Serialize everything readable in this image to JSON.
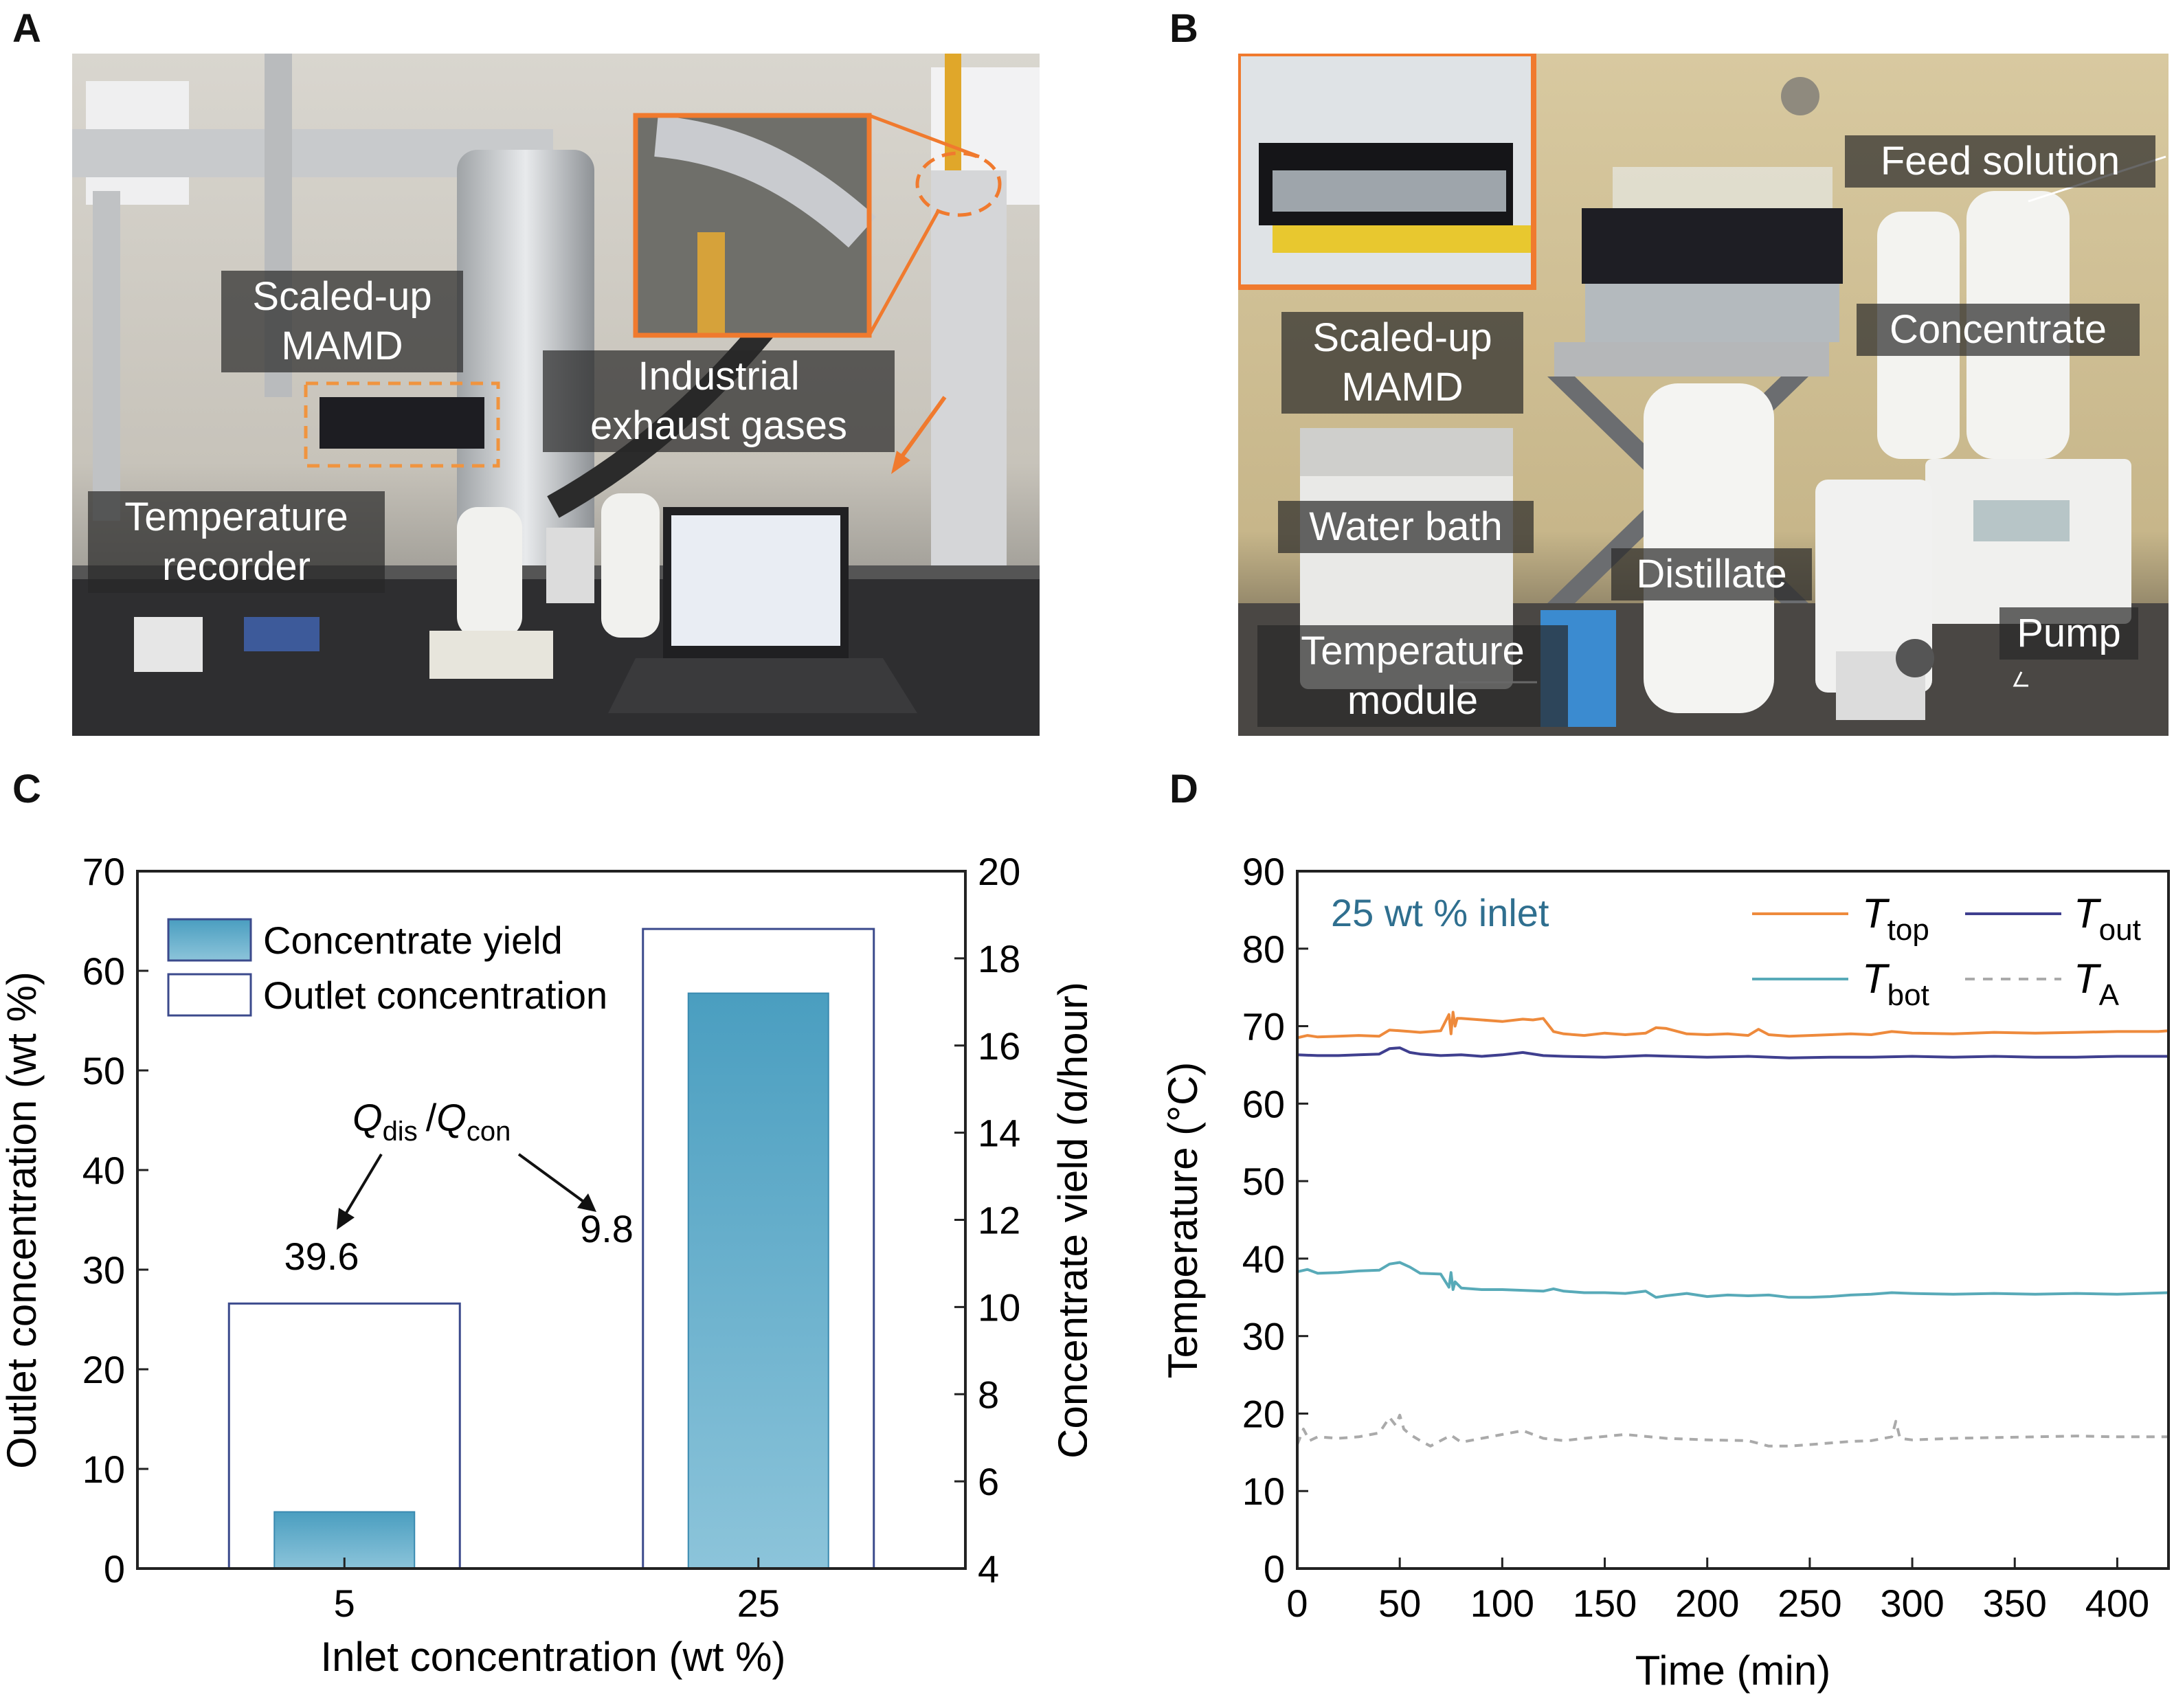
{
  "panels": {
    "a": "A",
    "b": "B",
    "c": "C",
    "d": "D"
  },
  "photo_a": {
    "labels": {
      "scaled_up_line1": "Scaled-up",
      "scaled_up_line2": "MAMD",
      "industrial_line1": "Industrial",
      "industrial_line2": "exhaust gases",
      "temp_recorder_line1": "Temperature",
      "temp_recorder_line2": "recorder"
    }
  },
  "photo_b": {
    "labels": {
      "feed": "Feed solution",
      "concentrate": "Concentrate",
      "scaled_up_line1": "Scaled-up",
      "scaled_up_line2": "MAMD",
      "water_bath": "Water bath",
      "distillate": "Distillate",
      "pump": "Pump",
      "temp_module_line1": "Temperature",
      "temp_module_line2": "module"
    }
  },
  "chart_c": {
    "type": "bar",
    "xlabel": "Inlet concentration (wt %)",
    "ylabel_left": "Outlet concentration (wt %)",
    "ylabel_right": "Concentrate yield (g/hour)",
    "categories": [
      "5",
      "25"
    ],
    "ylim_left": [
      0,
      70
    ],
    "yticks_left": [
      "0",
      "10",
      "20",
      "30",
      "40",
      "50",
      "60",
      "70"
    ],
    "ylim_right": [
      4,
      20
    ],
    "yticks_right": [
      "4",
      "6",
      "8",
      "10",
      "12",
      "14",
      "16",
      "18",
      "20"
    ],
    "series": [
      {
        "name": "Concentrate yield",
        "axis": "right",
        "values": [
          5.3,
          17.2
        ]
      },
      {
        "name": "Outlet concentration",
        "axis": "left",
        "values": [
          26.6,
          64.2
        ]
      }
    ],
    "annotation": {
      "q": "Q",
      "dis": "dis",
      "slash": "/",
      "con": "con"
    },
    "data_labels": [
      "39.6",
      "9.8"
    ],
    "colors": {
      "bar_top": "#4a9ec0",
      "bar_bottom": "#8cc4da",
      "outline": "#3b4a8c",
      "axis": "#222222"
    }
  },
  "chart_d": {
    "type": "line",
    "xlabel": "Time (min)",
    "ylabel": "Temperature (°C)",
    "xlim": [
      0,
      425
    ],
    "xticks": [
      "0",
      "50",
      "100",
      "150",
      "200",
      "250",
      "300",
      "350",
      "400"
    ],
    "ylim": [
      0,
      90
    ],
    "yticks": [
      "0",
      "10",
      "20",
      "30",
      "40",
      "50",
      "60",
      "70",
      "80",
      "90"
    ],
    "inset_text": "25 wt % inlet",
    "series": [
      {
        "name": "T_top",
        "main": "T",
        "sub": "top",
        "color": "#ee8a3c",
        "dashed": false,
        "x": [
          0,
          5,
          10,
          20,
          30,
          40,
          45,
          50,
          55,
          60,
          70,
          74,
          75,
          76,
          77,
          78,
          80,
          90,
          100,
          110,
          115,
          120,
          125,
          130,
          140,
          150,
          160,
          170,
          175,
          180,
          190,
          200,
          210,
          220,
          225,
          230,
          240,
          250,
          260,
          270,
          280,
          290,
          300,
          320,
          340,
          360,
          380,
          400,
          420,
          425
        ],
        "y": [
          68.5,
          68.8,
          68.6,
          68.7,
          68.8,
          68.7,
          69.5,
          69.4,
          69.3,
          69.2,
          69.4,
          71.5,
          69.0,
          71.8,
          70.0,
          71.0,
          71.0,
          70.8,
          70.6,
          70.9,
          70.8,
          71.0,
          69.3,
          69.0,
          68.8,
          69.1,
          68.9,
          69.1,
          69.8,
          69.7,
          69.0,
          68.9,
          69.0,
          68.8,
          69.6,
          68.9,
          68.7,
          68.8,
          68.9,
          69.0,
          68.9,
          69.3,
          69.1,
          69.0,
          69.2,
          69.1,
          69.2,
          69.3,
          69.3,
          69.4
        ]
      },
      {
        "name": "T_out",
        "main": "T",
        "sub": "out",
        "color": "#3f3f8f",
        "dashed": false,
        "x": [
          0,
          10,
          20,
          30,
          40,
          45,
          50,
          55,
          60,
          70,
          80,
          90,
          100,
          110,
          120,
          130,
          150,
          170,
          200,
          220,
          240,
          260,
          280,
          300,
          320,
          340,
          360,
          380,
          400,
          425
        ],
        "y": [
          66.3,
          66.2,
          66.2,
          66.3,
          66.4,
          67.1,
          67.2,
          66.6,
          66.4,
          66.2,
          66.3,
          66.1,
          66.3,
          66.6,
          66.2,
          66.1,
          66.0,
          66.2,
          66.0,
          66.1,
          65.9,
          66.0,
          66.0,
          66.1,
          66.0,
          66.1,
          66.0,
          66.0,
          66.1,
          66.1
        ]
      },
      {
        "name": "T_bot",
        "main": "T",
        "sub": "bot",
        "color": "#58aab8",
        "dashed": false,
        "x": [
          0,
          5,
          10,
          20,
          30,
          40,
          45,
          50,
          55,
          60,
          70,
          74,
          75,
          76,
          77,
          80,
          90,
          100,
          110,
          120,
          125,
          130,
          140,
          150,
          160,
          170,
          175,
          180,
          190,
          200,
          210,
          220,
          230,
          240,
          250,
          260,
          270,
          280,
          290,
          300,
          320,
          340,
          360,
          380,
          400,
          425
        ],
        "y": [
          38.3,
          38.6,
          38.1,
          38.2,
          38.4,
          38.5,
          39.3,
          39.5,
          38.9,
          38.1,
          38.0,
          36.3,
          38.2,
          36.0,
          37.0,
          36.2,
          36.0,
          36.0,
          35.9,
          35.8,
          36.1,
          35.8,
          35.6,
          35.6,
          35.5,
          35.8,
          35.0,
          35.2,
          35.5,
          35.1,
          35.3,
          35.2,
          35.3,
          35.0,
          35.0,
          35.1,
          35.3,
          35.4,
          35.6,
          35.5,
          35.4,
          35.5,
          35.4,
          35.5,
          35.4,
          35.6
        ]
      },
      {
        "name": "T_A",
        "main": "T",
        "sub": "A",
        "color": "#aaaaaa",
        "dashed": true,
        "x": [
          0,
          3,
          6,
          10,
          20,
          30,
          40,
          45,
          48,
          50,
          52,
          55,
          60,
          65,
          70,
          75,
          80,
          90,
          100,
          110,
          120,
          130,
          140,
          160,
          180,
          200,
          220,
          230,
          240,
          250,
          260,
          270,
          280,
          290,
          292,
          294,
          300,
          320,
          340,
          360,
          380,
          400,
          425
        ],
        "y": [
          16.0,
          18.0,
          16.5,
          17.0,
          16.8,
          17.0,
          17.5,
          19.5,
          18.5,
          19.8,
          18.0,
          17.3,
          16.5,
          15.8,
          16.5,
          17.2,
          16.3,
          16.8,
          17.3,
          17.8,
          16.8,
          16.5,
          16.8,
          17.3,
          16.8,
          16.6,
          16.5,
          15.8,
          15.8,
          16.0,
          16.2,
          16.4,
          16.5,
          17.0,
          19.0,
          16.8,
          16.6,
          16.8,
          16.9,
          17.0,
          17.1,
          17.0,
          17.0
        ]
      }
    ]
  }
}
